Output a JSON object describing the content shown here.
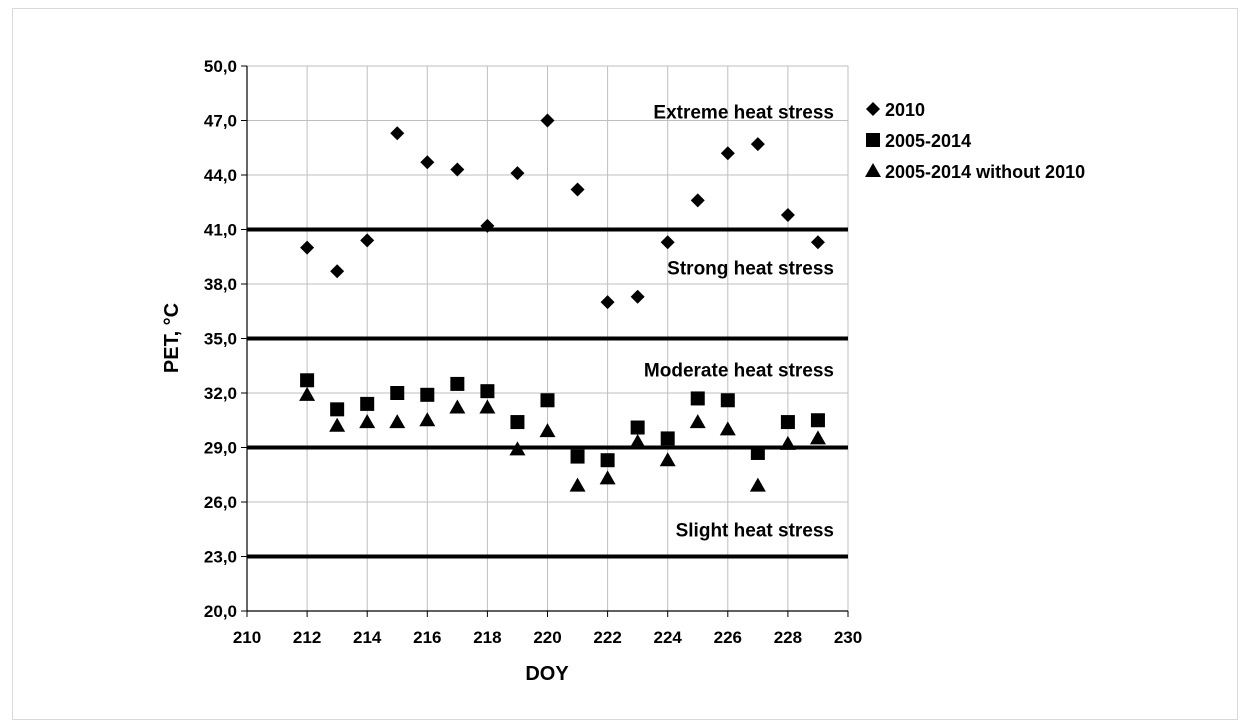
{
  "chart_data": {
    "type": "scatter",
    "title": "",
    "xlabel": "DOY",
    "ylabel": "PET, °C",
    "xlim": [
      210,
      230
    ],
    "ylim": [
      20,
      50
    ],
    "grid": true,
    "x_ticks": [
      "210",
      "212",
      "214",
      "216",
      "218",
      "220",
      "222",
      "224",
      "226",
      "228",
      "230"
    ],
    "y_ticks": [
      "20,0",
      "23,0",
      "26,0",
      "29,0",
      "32,0",
      "35,0",
      "38,0",
      "41,0",
      "44,0",
      "47,0",
      "50,0"
    ],
    "legend_position": "right",
    "series": [
      {
        "name": "2010",
        "marker": "diamond",
        "x": [
          212,
          213,
          214,
          215,
          216,
          217,
          218,
          219,
          220,
          221,
          222,
          223,
          224,
          225,
          226,
          227,
          228,
          229
        ],
        "y": [
          40.0,
          38.7,
          40.4,
          46.3,
          44.7,
          44.3,
          41.2,
          44.1,
          47.0,
          43.2,
          37.0,
          37.3,
          40.3,
          42.6,
          45.2,
          45.7,
          41.8,
          40.3
        ]
      },
      {
        "name": "2005-2014",
        "marker": "square",
        "x": [
          212,
          213,
          214,
          215,
          216,
          217,
          218,
          219,
          220,
          221,
          222,
          223,
          224,
          225,
          226,
          227,
          228,
          229
        ],
        "y": [
          32.7,
          31.1,
          31.4,
          32.0,
          31.9,
          32.5,
          32.1,
          30.4,
          31.6,
          28.5,
          28.3,
          30.1,
          29.5,
          31.7,
          31.6,
          28.7,
          30.4,
          30.5
        ]
      },
      {
        "name": "2005-2014 without 2010",
        "marker": "triangle",
        "x": [
          212,
          213,
          214,
          215,
          216,
          217,
          218,
          219,
          220,
          221,
          222,
          223,
          224,
          225,
          226,
          227,
          228,
          229
        ],
        "y": [
          31.9,
          30.2,
          30.4,
          30.4,
          30.5,
          31.2,
          31.2,
          28.9,
          29.9,
          26.9,
          27.3,
          29.3,
          28.3,
          30.4,
          30.0,
          26.9,
          29.2,
          29.5
        ]
      }
    ],
    "thresholds": [
      {
        "y": 41.0
      },
      {
        "y": 35.0
      },
      {
        "y": 29.0
      },
      {
        "y": 23.0
      }
    ],
    "zones": [
      {
        "label": "Extreme heat stress",
        "y": 47.5
      },
      {
        "label": "Strong heat stress",
        "y": 38.9
      },
      {
        "label": "Moderate heat stress",
        "y": 33.3
      },
      {
        "label": "Slight heat stress",
        "y": 24.5
      }
    ]
  }
}
